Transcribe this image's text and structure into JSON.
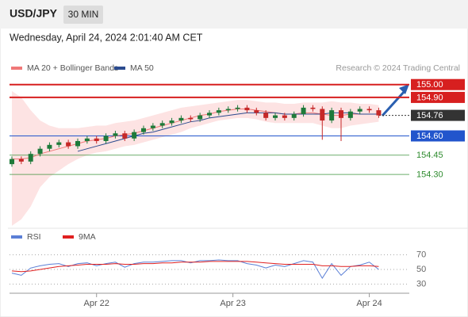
{
  "header": {
    "symbol": "USD/JPY",
    "interval": "30 MIN",
    "timestamp": "Wednesday, April 24, 2024 2:01:40 AM CET"
  },
  "chart_data": [
    {
      "type": "candlestick",
      "source": "Research © 2024 Trading Central",
      "up_color": "#1e7a3a",
      "down_color": "#c62828",
      "xlim": [
        0,
        42
      ],
      "ylim": [
        153.93,
        155.06
      ],
      "open": [
        154.38,
        154.42,
        154.4,
        154.46,
        154.5,
        154.53,
        154.55,
        154.52,
        154.56,
        154.58,
        154.56,
        154.6,
        154.62,
        154.58,
        154.63,
        154.66,
        154.68,
        154.7,
        154.72,
        154.74,
        154.73,
        154.76,
        154.78,
        154.8,
        154.81,
        154.82,
        154.8,
        154.78,
        154.74,
        154.76,
        154.74,
        154.77,
        154.82,
        154.81,
        154.72,
        154.8,
        154.74,
        154.79,
        154.81,
        154.8
      ],
      "high": [
        154.44,
        154.44,
        154.48,
        154.52,
        154.55,
        154.57,
        154.57,
        154.58,
        154.6,
        154.6,
        154.62,
        154.64,
        154.64,
        154.65,
        154.68,
        154.7,
        154.72,
        154.74,
        154.76,
        154.76,
        154.78,
        154.8,
        154.82,
        154.83,
        154.84,
        154.84,
        154.82,
        154.8,
        154.78,
        154.78,
        154.79,
        154.84,
        154.84,
        154.83,
        154.82,
        154.82,
        154.81,
        154.83,
        154.83,
        154.82
      ],
      "low": [
        154.36,
        154.38,
        154.38,
        154.44,
        154.48,
        154.51,
        154.5,
        154.5,
        154.54,
        154.54,
        154.54,
        154.58,
        154.56,
        154.56,
        154.61,
        154.64,
        154.66,
        154.68,
        154.7,
        154.71,
        154.71,
        154.74,
        154.76,
        154.78,
        154.79,
        154.78,
        154.76,
        154.72,
        154.72,
        154.72,
        154.72,
        154.75,
        154.79,
        154.57,
        154.7,
        154.56,
        154.72,
        154.77,
        154.78,
        154.74
      ],
      "close": [
        154.42,
        154.4,
        154.46,
        154.5,
        154.53,
        154.55,
        154.52,
        154.56,
        154.58,
        154.56,
        154.6,
        154.62,
        154.58,
        154.63,
        154.66,
        154.68,
        154.7,
        154.72,
        154.74,
        154.73,
        154.76,
        154.78,
        154.8,
        154.81,
        154.82,
        154.8,
        154.78,
        154.74,
        154.76,
        154.74,
        154.77,
        154.82,
        154.81,
        154.72,
        154.8,
        154.74,
        154.79,
        154.81,
        154.8,
        154.76
      ],
      "series": [
        {
          "name": "MA 20 + Bollinger Bands",
          "color": "#f07878",
          "band_color": "#fde3e3",
          "values": [
            154.42,
            154.42,
            154.43,
            154.46,
            154.48,
            154.5,
            154.52,
            154.54,
            154.56,
            154.57,
            154.58,
            154.6,
            154.61,
            154.62,
            154.64,
            154.66,
            154.68,
            154.7,
            154.72,
            154.74,
            154.76,
            154.77,
            154.79,
            154.8,
            154.81,
            154.81,
            154.8,
            154.79,
            154.78,
            154.77,
            154.77,
            154.78,
            154.78,
            154.77,
            154.76,
            154.76,
            154.77,
            154.77,
            154.77,
            154.77
          ],
          "upper": [
            154.95,
            154.9,
            154.8,
            154.72,
            154.68,
            154.66,
            154.66,
            154.66,
            154.67,
            154.68,
            154.68,
            154.7,
            154.71,
            154.72,
            154.74,
            154.76,
            154.78,
            154.8,
            154.82,
            154.83,
            154.84,
            154.85,
            154.86,
            154.87,
            154.88,
            154.88,
            154.87,
            154.86,
            154.86,
            154.85,
            154.85,
            154.86,
            154.86,
            154.86,
            154.87,
            154.86,
            154.86,
            154.85,
            154.85,
            154.84
          ],
          "lower": [
            153.9,
            153.95,
            154.05,
            154.2,
            154.28,
            154.33,
            154.38,
            154.42,
            154.45,
            154.47,
            154.48,
            154.5,
            154.52,
            154.53,
            154.55,
            154.57,
            154.59,
            154.61,
            154.63,
            154.66,
            154.68,
            154.7,
            154.72,
            154.73,
            154.74,
            154.74,
            154.73,
            154.71,
            154.7,
            154.7,
            154.7,
            154.7,
            154.7,
            154.68,
            154.66,
            154.66,
            154.68,
            154.69,
            154.7,
            154.71
          ]
        },
        {
          "name": "MA 50",
          "color": "#2b4b8f",
          "values": [
            null,
            null,
            null,
            null,
            null,
            null,
            null,
            154.48,
            154.5,
            154.52,
            154.54,
            154.56,
            154.58,
            154.6,
            154.62,
            154.63,
            154.65,
            154.67,
            154.69,
            154.71,
            154.72,
            154.74,
            154.75,
            154.76,
            154.77,
            154.78,
            154.78,
            154.78,
            154.78,
            154.77,
            154.77,
            154.77,
            154.77,
            154.77,
            154.78,
            154.78,
            154.78,
            154.77,
            154.77,
            154.77
          ]
        }
      ],
      "levels": [
        {
          "value": 155.0,
          "label": "155.00",
          "color": "#d71f1f",
          "box": true
        },
        {
          "value": 154.9,
          "label": "154.90",
          "color": "#d71f1f",
          "box": true
        },
        {
          "value": 154.76,
          "label": "154.76",
          "color": "#333333",
          "box": true,
          "dotted": true
        },
        {
          "value": 154.6,
          "label": "154.60",
          "color": "#2255cc",
          "box": true
        },
        {
          "value": 154.45,
          "label": "154.45",
          "color": "#2e8b2e",
          "box": false
        },
        {
          "value": 154.3,
          "label": "154.30",
          "color": "#2e8b2e",
          "box": false
        }
      ]
    },
    {
      "type": "line",
      "xlim": [
        0,
        42
      ],
      "ylim": [
        24,
        76
      ],
      "yticks": [
        70,
        50,
        30
      ],
      "grid": true,
      "xticks": [
        {
          "value": 9,
          "label": "Apr 22"
        },
        {
          "value": 23.5,
          "label": "Apr 23"
        },
        {
          "value": 38,
          "label": "Apr 24"
        }
      ],
      "series": [
        {
          "name": "RSI",
          "color": "#5b7fd6",
          "values": [
            45,
            42,
            52,
            55,
            57,
            58,
            54,
            58,
            59,
            55,
            58,
            60,
            53,
            58,
            60,
            60,
            61,
            62,
            62,
            59,
            62,
            62,
            63,
            62,
            62,
            58,
            56,
            52,
            56,
            54,
            58,
            62,
            60,
            38,
            58,
            42,
            54,
            56,
            60,
            50
          ]
        },
        {
          "name": "9MA",
          "color": "#e02020",
          "values": [
            48,
            47,
            48,
            50,
            52,
            54,
            55,
            56,
            57,
            57,
            57,
            58,
            57,
            57,
            58,
            58,
            59,
            59,
            60,
            60,
            60,
            61,
            61,
            61,
            61,
            61,
            60,
            59,
            58,
            57,
            57,
            57,
            57,
            55,
            55,
            54,
            54,
            55,
            55,
            54
          ]
        }
      ]
    }
  ]
}
